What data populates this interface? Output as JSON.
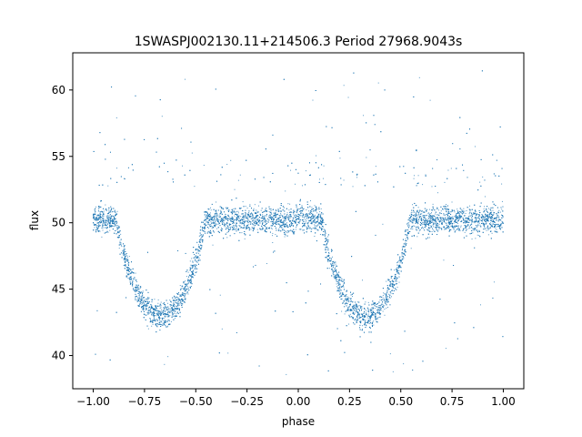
{
  "chart_data": {
    "type": "scatter",
    "title": "1SWASPJ002130.11+214506.3 Period 27968.9043s",
    "xlabel": "phase",
    "ylabel": "flux",
    "xlim": [
      -1.1,
      1.1
    ],
    "ylim": [
      37.5,
      62.8
    ],
    "xticks": [
      -1.0,
      -0.75,
      -0.5,
      -0.25,
      0.0,
      0.25,
      0.5,
      0.75,
      1.0
    ],
    "xtick_labels": [
      "−1.00",
      "−0.75",
      "−0.50",
      "−0.25",
      "0.00",
      "0.25",
      "0.50",
      "0.75",
      "1.00"
    ],
    "yticks": [
      40,
      45,
      50,
      55,
      60
    ],
    "ytick_labels": [
      "40",
      "45",
      "50",
      "55",
      "60"
    ],
    "grid": false,
    "legend": "none",
    "series": [
      {
        "color": "#1f77b4",
        "marker": "point",
        "x_range": [
          -1.0,
          1.0
        ],
        "baseline_flux": 50.2,
        "baseline_scatter": 0.5,
        "eclipses": [
          {
            "center_phase": -0.67,
            "ingress_phase": -0.88,
            "egress_phase": -0.45,
            "minimum_flux": 43.0
          },
          {
            "center_phase": 0.33,
            "ingress_phase": 0.12,
            "egress_phase": 0.55,
            "minimum_flux": 43.0
          }
        ],
        "outlier_flux_range": [
          38.5,
          61.5
        ]
      }
    ]
  }
}
